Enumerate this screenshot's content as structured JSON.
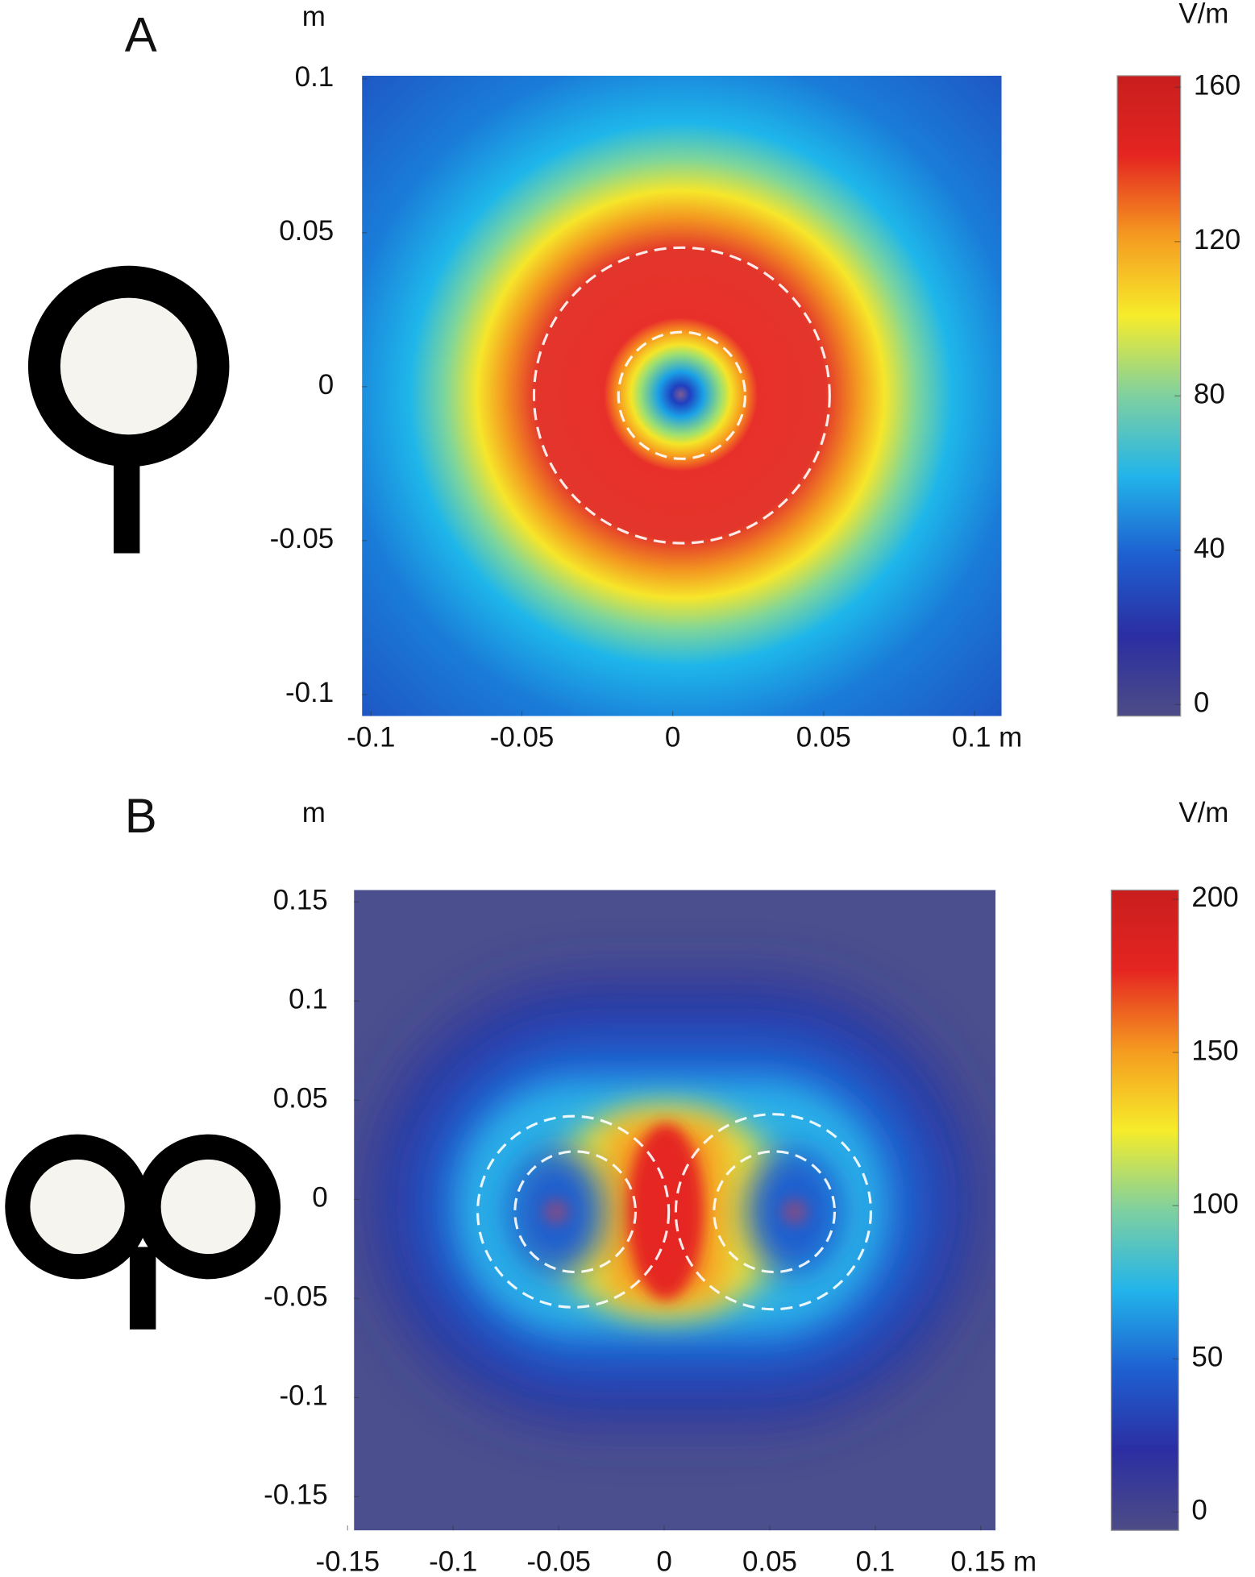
{
  "chart_data": [
    {
      "type": "heatmap",
      "panel": "A",
      "ylabel": "m",
      "colorbar_label": "V/m",
      "xlim": [
        -0.103,
        0.109
      ],
      "ylim": [
        -0.107,
        0.101
      ],
      "xticks": [
        -0.1,
        -0.05,
        0,
        0.05,
        {
          "value": 0.1,
          "label": "0.1 m"
        }
      ],
      "yticks": [
        -0.1,
        -0.05,
        0,
        0.05,
        0.1
      ],
      "clim": [
        -3,
        163
      ],
      "cticks": [
        0,
        40,
        80,
        120,
        160
      ],
      "colormap": [
        "#4d4c86",
        "#2b2ea2",
        "#1e5fd0",
        "#22b4ea",
        "#7fd0a0",
        "#f6ec2a",
        "#f59a20",
        "#e52521",
        "#c81e1e"
      ]
    },
    {
      "type": "heatmap",
      "panel": "B",
      "ylabel": "m",
      "colorbar_label": "V/m",
      "xlim": [
        -0.147,
        0.157
      ],
      "ylim": [
        -0.167,
        0.156
      ],
      "xticks": [
        -0.15,
        -0.1,
        -0.05,
        0,
        0.05,
        0.1,
        {
          "value": 0.15,
          "label": "0.15 m"
        }
      ],
      "yticks": [
        -0.15,
        -0.1,
        -0.05,
        0,
        0.05,
        0.1,
        0.15
      ],
      "clim": [
        -6,
        203
      ],
      "cticks": [
        0,
        50,
        100,
        150,
        200
      ],
      "colormap": [
        "#4d4c86",
        "#2b2ea2",
        "#1e5fd0",
        "#22b4ea",
        "#7fd0a0",
        "#f6ec2a",
        "#f59a20",
        "#e52521",
        "#c81e1e"
      ]
    }
  ]
}
